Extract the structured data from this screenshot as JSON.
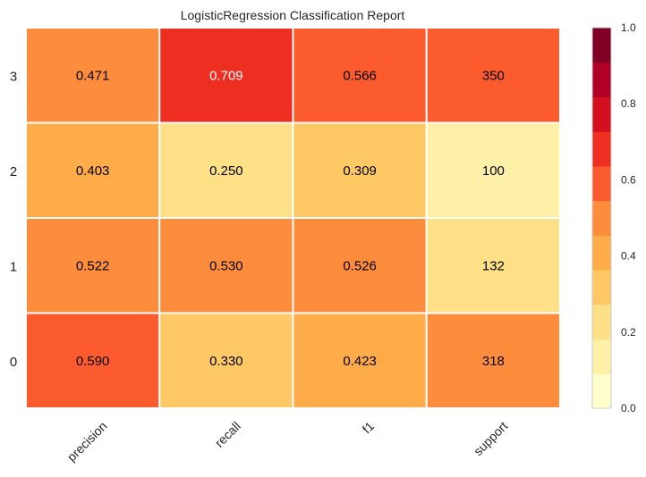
{
  "chart_data": {
    "type": "heatmap",
    "title": "LogisticRegression Classification Report",
    "columns": [
      "precision",
      "recall",
      "f1",
      "support"
    ],
    "rows": [
      "3",
      "2",
      "1",
      "0"
    ],
    "values": [
      [
        0.471,
        0.709,
        0.566,
        0.583
      ],
      [
        0.403,
        0.25,
        0.309,
        0.167
      ],
      [
        0.522,
        0.53,
        0.526,
        0.22
      ],
      [
        0.59,
        0.33,
        0.423,
        0.53
      ]
    ],
    "labels": [
      [
        "0.471",
        "0.709",
        "0.566",
        "350"
      ],
      [
        "0.403",
        "0.250",
        "0.309",
        "100"
      ],
      [
        "0.522",
        "0.530",
        "0.526",
        "132"
      ],
      [
        "0.590",
        "0.330",
        "0.423",
        "318"
      ]
    ],
    "colorbar": {
      "range": [
        0.0,
        1.0
      ],
      "ticks": [
        "0.0",
        "0.2",
        "0.4",
        "0.6",
        "0.8",
        "1.0"
      ],
      "colors": [
        "#ffffcc",
        "#fff0a8",
        "#fee087",
        "#fec965",
        "#feab49",
        "#fd8c3c",
        "#fc5b2e",
        "#ed2e21",
        "#d41020",
        "#b00026",
        "#800026"
      ]
    },
    "grid": false,
    "legend": "colorbar-right"
  }
}
